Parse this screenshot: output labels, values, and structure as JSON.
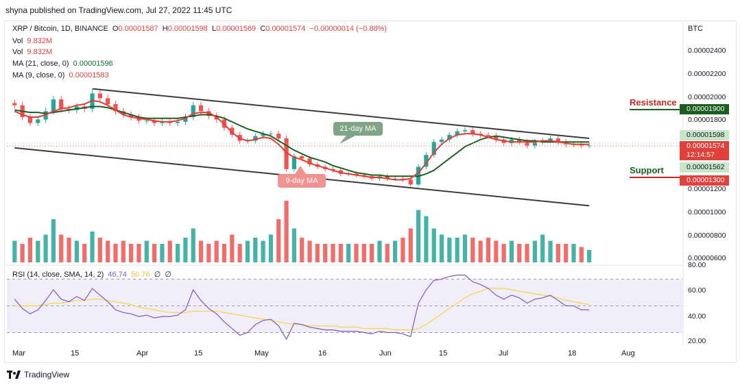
{
  "publisher": "shyna published on TradingView.com, Jul 27, 2022 11:45 UTC",
  "footer": {
    "brand": "TradingView",
    "logo_icon": "tradingview-logo-icon"
  },
  "colors": {
    "bull": "#26a69a",
    "bear": "#ef5350",
    "ma21": "#1b5e20",
    "ma9": "#e53935",
    "rsi": "#7e57c2",
    "rsi_ma": "#f5d547",
    "channel": "#3a3a3a"
  },
  "legend": {
    "symbol": "XRP / Bitcoin, 1D, BINANCE",
    "o_label": "O",
    "o_value": "0.00001587",
    "h_label": "H",
    "h_value": "0.00001598",
    "l_label": "L",
    "l_value": "0.00001569",
    "c_label": "C",
    "c_value": "0.00001574",
    "change": "−0.00000014 (−0.88%)",
    "vol1_label": "Vol",
    "vol1_value": "9.832M",
    "vol2_label": "Vol",
    "vol2_value": "9.832M",
    "ma21_label": "MA (21, close, 0)",
    "ma21_value": "0.00001596",
    "ma9_label": "MA (9, close, 0)",
    "ma9_value": "0.00001583",
    "rsi_label": "RSI (14, close, SMA, 14, 2)",
    "rsi_value": "46.74",
    "rsi_ma_value": "50.76",
    "rsi_extra1": "∅",
    "rsi_extra2": "∅"
  },
  "price_axis": {
    "unit": "BTC",
    "ticks": [
      "0.00002400",
      "0.00002200",
      "0.00002000",
      "0.00001800",
      "0.00001200",
      "0.00001000",
      "0.00000800",
      "0.00000600"
    ]
  },
  "price_tags": {
    "resistance": "0.00001900",
    "high": "0.00001598",
    "last": "0.00001574",
    "countdown": "12:14:57",
    "low": "0.00001562",
    "support": "0.00001300"
  },
  "annotations": {
    "resistance": "Resistance",
    "support": "Support",
    "ma21_callout": "21-day MA",
    "ma9_callout": "9-day MA"
  },
  "rsi_axis": {
    "ticks": [
      "80.00",
      "60.00",
      "40.00",
      "20.00"
    ]
  },
  "time_axis": {
    "ticks": [
      "Mar",
      "15",
      "Apr",
      "15",
      "May",
      "16",
      "Jun",
      "15",
      "Jul",
      "18",
      "Aug"
    ]
  },
  "chart_data": {
    "type": "line",
    "title": "XRP / Bitcoin, 1D, BINANCE",
    "price_range": [
      5.7e-06,
      2.54e-05
    ],
    "rsi_range": [
      20,
      80
    ],
    "rsi_bands": [
      30,
      70
    ],
    "x_dates": [
      "2022-03-01",
      "2022-03-03",
      "2022-03-05",
      "2022-03-07",
      "2022-03-09",
      "2022-03-11",
      "2022-03-13",
      "2022-03-15",
      "2022-03-17",
      "2022-03-19",
      "2022-03-21",
      "2022-03-23",
      "2022-03-25",
      "2022-03-27",
      "2022-03-29",
      "2022-03-31",
      "2022-04-02",
      "2022-04-04",
      "2022-04-06",
      "2022-04-08",
      "2022-04-10",
      "2022-04-12",
      "2022-04-14",
      "2022-04-16",
      "2022-04-18",
      "2022-04-20",
      "2022-04-22",
      "2022-04-24",
      "2022-04-26",
      "2022-04-28",
      "2022-04-30",
      "2022-05-02",
      "2022-05-04",
      "2022-05-06",
      "2022-05-08",
      "2022-05-10",
      "2022-05-12",
      "2022-05-14",
      "2022-05-16",
      "2022-05-18",
      "2022-05-20",
      "2022-05-22",
      "2022-05-24",
      "2022-05-26",
      "2022-05-28",
      "2022-05-30",
      "2022-06-01",
      "2022-06-03",
      "2022-06-05",
      "2022-06-07",
      "2022-06-09",
      "2022-06-11",
      "2022-06-13",
      "2022-06-15",
      "2022-06-17",
      "2022-06-19",
      "2022-06-21",
      "2022-06-23",
      "2022-06-25",
      "2022-06-27",
      "2022-06-29",
      "2022-07-01",
      "2022-07-03",
      "2022-07-05",
      "2022-07-07",
      "2022-07-09",
      "2022-07-11",
      "2022-07-13",
      "2022-07-15",
      "2022-07-17",
      "2022-07-19",
      "2022-07-21",
      "2022-07-23",
      "2022-07-25",
      "2022-07-27"
    ],
    "close": [
      1.91e-05,
      1.81e-05,
      1.76e-05,
      1.79e-05,
      1.86e-05,
      1.96e-05,
      1.88e-05,
      1.87e-05,
      1.9e-05,
      1.88e-05,
      2.01e-05,
      1.97e-05,
      1.92e-05,
      1.86e-05,
      1.83e-05,
      1.81e-05,
      1.78e-05,
      1.78e-05,
      1.76e-05,
      1.77e-05,
      1.76e-05,
      1.77e-05,
      1.81e-05,
      1.91e-05,
      1.86e-05,
      1.82e-05,
      1.79e-05,
      1.72e-05,
      1.66e-05,
      1.61e-05,
      1.61e-05,
      1.65e-05,
      1.67e-05,
      1.67e-05,
      1.63e-05,
      1.37e-05,
      1.48e-05,
      1.46e-05,
      1.41e-05,
      1.39e-05,
      1.37e-05,
      1.36e-05,
      1.33e-05,
      1.33e-05,
      1.32e-05,
      1.31e-05,
      1.29e-05,
      1.31e-05,
      1.29e-05,
      1.29e-05,
      1.28e-05,
      1.24e-05,
      1.39e-05,
      1.49e-05,
      1.6e-05,
      1.62e-05,
      1.66e-05,
      1.69e-05,
      1.7e-05,
      1.67e-05,
      1.66e-05,
      1.65e-05,
      1.62e-05,
      1.59e-05,
      1.62e-05,
      1.6e-05,
      1.57e-05,
      1.6e-05,
      1.61e-05,
      1.63e-05,
      1.6e-05,
      1.58e-05,
      1.58e-05,
      1.57e-05,
      1.57e-05
    ],
    "series": [
      {
        "name": "MA (21, close, 0)",
        "values": [
          1.87e-05,
          1.86e-05,
          1.85e-05,
          1.85e-05,
          1.84e-05,
          1.85e-05,
          1.86e-05,
          1.87e-05,
          1.88e-05,
          1.89e-05,
          1.9e-05,
          1.9e-05,
          1.89e-05,
          1.87e-05,
          1.85e-05,
          1.83e-05,
          1.81e-05,
          1.8e-05,
          1.8e-05,
          1.8e-05,
          1.8e-05,
          1.8e-05,
          1.81e-05,
          1.82e-05,
          1.83e-05,
          1.83e-05,
          1.82e-05,
          1.8e-05,
          1.77e-05,
          1.74e-05,
          1.71e-05,
          1.69e-05,
          1.67e-05,
          1.65e-05,
          1.61e-05,
          1.57e-05,
          1.53e-05,
          1.5e-05,
          1.47e-05,
          1.45e-05,
          1.43e-05,
          1.4e-05,
          1.38e-05,
          1.36e-05,
          1.34e-05,
          1.33e-05,
          1.32e-05,
          1.32e-05,
          1.31e-05,
          1.31e-05,
          1.31e-05,
          1.31e-05,
          1.31e-05,
          1.33e-05,
          1.36e-05,
          1.41e-05,
          1.46e-05,
          1.51e-05,
          1.56e-05,
          1.59e-05,
          1.62e-05,
          1.64e-05,
          1.65e-05,
          1.64e-05,
          1.63e-05,
          1.62e-05,
          1.61e-05,
          1.61e-05,
          1.6e-05,
          1.6e-05,
          1.6e-05,
          1.6e-05,
          1.6e-05,
          1.6e-05,
          1.6e-05
        ]
      },
      {
        "name": "MA (9, close, 0)",
        "values": [
          1.86e-05,
          1.83e-05,
          1.81e-05,
          1.81e-05,
          1.83e-05,
          1.86e-05,
          1.88e-05,
          1.89e-05,
          1.91e-05,
          1.92e-05,
          1.95e-05,
          1.94e-05,
          1.91e-05,
          1.87e-05,
          1.83e-05,
          1.81e-05,
          1.8e-05,
          1.79e-05,
          1.78e-05,
          1.77e-05,
          1.77e-05,
          1.78e-05,
          1.8e-05,
          1.84e-05,
          1.85e-05,
          1.85e-05,
          1.81e-05,
          1.75e-05,
          1.68e-05,
          1.63e-05,
          1.61e-05,
          1.62e-05,
          1.64e-05,
          1.63e-05,
          1.58e-05,
          1.51e-05,
          1.47e-05,
          1.45e-05,
          1.42e-05,
          1.4e-05,
          1.38e-05,
          1.36e-05,
          1.34e-05,
          1.33e-05,
          1.32e-05,
          1.31e-05,
          1.3e-05,
          1.3e-05,
          1.29e-05,
          1.28e-05,
          1.28e-05,
          1.29e-05,
          1.34e-05,
          1.42e-05,
          1.51e-05,
          1.58e-05,
          1.63e-05,
          1.66e-05,
          1.67e-05,
          1.67e-05,
          1.66e-05,
          1.64e-05,
          1.62e-05,
          1.61e-05,
          1.6e-05,
          1.6e-05,
          1.6e-05,
          1.6e-05,
          1.61e-05,
          1.61e-05,
          1.6e-05,
          1.59e-05,
          1.58e-05,
          1.58e-05,
          1.58e-05
        ]
      }
    ],
    "volume_relative": [
      0.35,
      0.3,
      0.4,
      0.35,
      0.45,
      0.7,
      0.45,
      0.4,
      0.35,
      0.3,
      0.5,
      0.4,
      0.35,
      0.3,
      0.35,
      0.3,
      0.3,
      0.35,
      0.3,
      0.3,
      0.35,
      0.3,
      0.4,
      0.55,
      0.35,
      0.3,
      0.35,
      0.3,
      0.45,
      0.3,
      0.35,
      0.4,
      0.35,
      0.45,
      0.7,
      1.0,
      0.55,
      0.4,
      0.35,
      0.3,
      0.3,
      0.3,
      0.3,
      0.3,
      0.3,
      0.3,
      0.3,
      0.35,
      0.3,
      0.35,
      0.4,
      0.55,
      0.85,
      0.75,
      0.55,
      0.45,
      0.4,
      0.4,
      0.45,
      0.4,
      0.35,
      0.4,
      0.35,
      0.3,
      0.35,
      0.3,
      0.3,
      0.35,
      0.45,
      0.35,
      0.3,
      0.3,
      0.3,
      0.25,
      0.2
    ],
    "rsi": [
      55,
      48,
      44,
      47,
      54,
      62,
      55,
      53,
      57,
      54,
      63,
      58,
      53,
      47,
      45,
      44,
      42,
      43,
      41,
      42,
      42,
      43,
      47,
      62,
      54,
      48,
      44,
      38,
      33,
      28,
      30,
      36,
      39,
      40,
      35,
      25,
      37,
      36,
      34,
      33,
      32,
      32,
      31,
      31,
      31,
      30,
      29,
      31,
      30,
      30,
      29,
      27,
      52,
      62,
      69,
      70,
      72,
      73,
      73,
      68,
      66,
      63,
      58,
      55,
      58,
      56,
      52,
      55,
      56,
      58,
      54,
      50,
      50,
      47,
      47
    ],
    "rsi_ma": [
      50,
      50,
      50,
      50,
      51,
      52,
      52,
      53,
      54,
      54,
      55,
      55,
      54,
      53,
      52,
      51,
      49,
      48,
      47,
      46,
      45,
      45,
      45,
      46,
      46,
      46,
      46,
      45,
      44,
      43,
      42,
      41,
      40,
      39,
      38,
      37,
      36,
      36,
      35,
      35,
      35,
      35,
      34,
      34,
      34,
      33,
      33,
      33,
      33,
      32,
      32,
      32,
      33,
      36,
      40,
      44,
      48,
      52,
      56,
      59,
      61,
      63,
      63,
      63,
      62,
      61,
      60,
      59,
      58,
      57,
      56,
      54,
      53,
      52,
      51
    ],
    "channel": {
      "upper": {
        "from": [
          "2022-03-21",
          2.05e-05
        ],
        "to": [
          "2022-07-27",
          1.63e-05
        ]
      },
      "lower": {
        "from": [
          "2022-03-01",
          1.55e-05
        ],
        "to": [
          "2022-07-27",
          1.06e-05
        ]
      }
    }
  }
}
